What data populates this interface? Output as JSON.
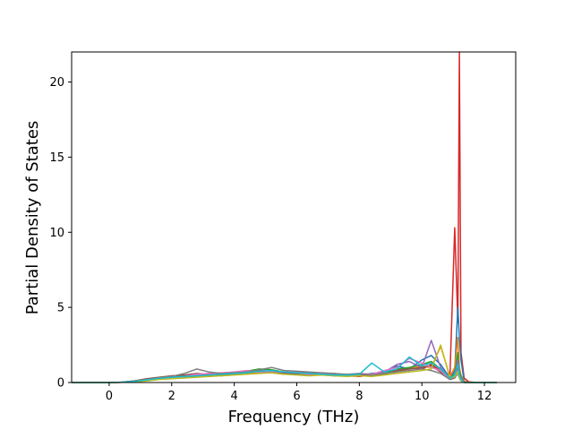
{
  "chart_data": {
    "type": "line",
    "title": "",
    "xlabel": "Frequency (THz)",
    "ylabel": "Partial Density of States",
    "xlim": [
      -1.2,
      13.0
    ],
    "ylim": [
      0,
      22.0
    ],
    "xticks": [
      0,
      2,
      4,
      6,
      8,
      10,
      12
    ],
    "yticks": [
      0,
      5,
      10,
      15,
      20
    ],
    "grid": false,
    "legend": "none",
    "x": [
      -1.2,
      -0.8,
      -0.4,
      0.0,
      0.4,
      0.8,
      1.2,
      1.6,
      2.0,
      2.4,
      2.8,
      3.2,
      3.6,
      4.0,
      4.4,
      4.8,
      5.2,
      5.6,
      6.0,
      6.4,
      6.8,
      7.2,
      7.6,
      8.0,
      8.4,
      8.8,
      9.2,
      9.6,
      10.0,
      10.3,
      10.6,
      10.9,
      11.05,
      11.15,
      11.2,
      11.25,
      11.35,
      11.5,
      11.8,
      12.1,
      12.4
    ],
    "series": [
      {
        "color": "#d62728",
        "values": [
          0,
          0,
          0,
          0,
          0.02,
          0.1,
          0.2,
          0.3,
          0.35,
          0.4,
          0.5,
          0.45,
          0.5,
          0.55,
          0.6,
          0.7,
          0.65,
          0.55,
          0.6,
          0.55,
          0.5,
          0.5,
          0.45,
          0.4,
          0.5,
          0.6,
          0.8,
          1.0,
          0.9,
          1.2,
          0.8,
          0.5,
          10.3,
          4.0,
          22.0,
          2.0,
          0.3,
          0.05,
          0,
          0,
          0
        ]
      },
      {
        "color": "#1f77b4",
        "values": [
          0,
          0,
          0,
          0,
          0.03,
          0.1,
          0.2,
          0.25,
          0.3,
          0.35,
          0.4,
          0.5,
          0.45,
          0.55,
          0.6,
          0.65,
          0.7,
          0.6,
          0.55,
          0.5,
          0.55,
          0.45,
          0.5,
          0.5,
          0.6,
          0.7,
          1.1,
          0.9,
          1.5,
          1.8,
          1.2,
          0.3,
          0.8,
          5.0,
          3.0,
          1.5,
          0.1,
          0,
          0,
          0,
          0
        ]
      },
      {
        "color": "#ff7f0e",
        "values": [
          0,
          0,
          0,
          0,
          0.01,
          0.05,
          0.15,
          0.25,
          0.3,
          0.4,
          0.45,
          0.4,
          0.5,
          0.6,
          0.55,
          0.7,
          0.8,
          0.7,
          0.6,
          0.55,
          0.5,
          0.45,
          0.55,
          0.5,
          0.45,
          0.6,
          0.7,
          0.9,
          1.1,
          1.0,
          2.4,
          0.4,
          1.0,
          3.0,
          1.0,
          0.5,
          0.1,
          0,
          0,
          0,
          0
        ]
      },
      {
        "color": "#2ca02c",
        "values": [
          0,
          0,
          0,
          0,
          0.02,
          0.08,
          0.2,
          0.3,
          0.4,
          0.45,
          0.5,
          0.55,
          0.6,
          0.7,
          0.75,
          0.9,
          0.85,
          0.7,
          0.65,
          0.6,
          0.6,
          0.55,
          0.5,
          0.55,
          0.5,
          0.6,
          0.9,
          1.0,
          1.2,
          1.4,
          0.9,
          0.3,
          0.6,
          2.0,
          0.8,
          0.4,
          0.05,
          0,
          0,
          0,
          0
        ]
      },
      {
        "color": "#9467bd",
        "values": [
          0,
          0,
          0,
          0,
          0.01,
          0.06,
          0.15,
          0.3,
          0.35,
          0.4,
          0.5,
          0.6,
          0.55,
          0.6,
          0.7,
          0.75,
          0.7,
          0.65,
          0.7,
          0.6,
          0.55,
          0.6,
          0.5,
          0.5,
          0.55,
          0.7,
          1.2,
          1.4,
          1.0,
          2.8,
          1.0,
          0.3,
          0.5,
          1.5,
          0.6,
          0.3,
          0.05,
          0,
          0,
          0,
          0
        ]
      },
      {
        "color": "#8c564b",
        "values": [
          0,
          0,
          0,
          0,
          0.02,
          0.1,
          0.25,
          0.35,
          0.45,
          0.5,
          0.6,
          0.55,
          0.5,
          0.6,
          0.65,
          0.8,
          0.75,
          0.65,
          0.6,
          0.65,
          0.55,
          0.5,
          0.55,
          0.45,
          0.5,
          0.55,
          0.8,
          0.9,
          1.0,
          1.1,
          0.7,
          0.2,
          0.4,
          1.0,
          0.5,
          0.2,
          0,
          0,
          0,
          0,
          0
        ]
      },
      {
        "color": "#e377c2",
        "values": [
          0,
          0,
          0,
          0,
          0.01,
          0.05,
          0.15,
          0.25,
          0.3,
          0.4,
          0.55,
          0.6,
          0.65,
          0.7,
          0.8,
          0.7,
          0.75,
          0.7,
          0.65,
          0.55,
          0.6,
          0.55,
          0.5,
          0.6,
          0.55,
          0.8,
          1.0,
          1.6,
          1.3,
          1.0,
          0.8,
          0.2,
          0.3,
          0.8,
          0.4,
          0.2,
          0,
          0,
          0,
          0,
          0
        ]
      },
      {
        "color": "#7f7f7f",
        "values": [
          0,
          0,
          0,
          0,
          0.02,
          0.08,
          0.2,
          0.3,
          0.4,
          0.6,
          0.9,
          0.7,
          0.6,
          0.65,
          0.7,
          0.85,
          1.0,
          0.8,
          0.75,
          0.7,
          0.65,
          0.6,
          0.55,
          0.6,
          0.5,
          0.6,
          0.7,
          0.8,
          0.9,
          0.8,
          0.6,
          0.2,
          0.3,
          0.6,
          0.3,
          0.1,
          0,
          0,
          0,
          0,
          0
        ]
      },
      {
        "color": "#bcbd22",
        "values": [
          0,
          0,
          0,
          0,
          0.01,
          0.04,
          0.1,
          0.2,
          0.25,
          0.3,
          0.35,
          0.4,
          0.45,
          0.5,
          0.55,
          0.6,
          0.65,
          0.55,
          0.5,
          0.45,
          0.5,
          0.45,
          0.4,
          0.45,
          0.4,
          0.5,
          0.6,
          0.7,
          0.8,
          0.9,
          2.5,
          0.3,
          0.4,
          0.7,
          0.3,
          0.1,
          0,
          0,
          0,
          0,
          0
        ]
      },
      {
        "color": "#17becf",
        "values": [
          0,
          0,
          0,
          0,
          0.02,
          0.07,
          0.18,
          0.28,
          0.35,
          0.4,
          0.45,
          0.5,
          0.55,
          0.6,
          0.65,
          0.75,
          0.8,
          0.7,
          0.65,
          0.6,
          0.55,
          0.5,
          0.5,
          0.55,
          1.3,
          0.7,
          0.9,
          1.7,
          1.1,
          1.3,
          0.9,
          0.3,
          0.5,
          1.2,
          0.5,
          0.2,
          0,
          0,
          0,
          0,
          0
        ]
      }
    ]
  }
}
